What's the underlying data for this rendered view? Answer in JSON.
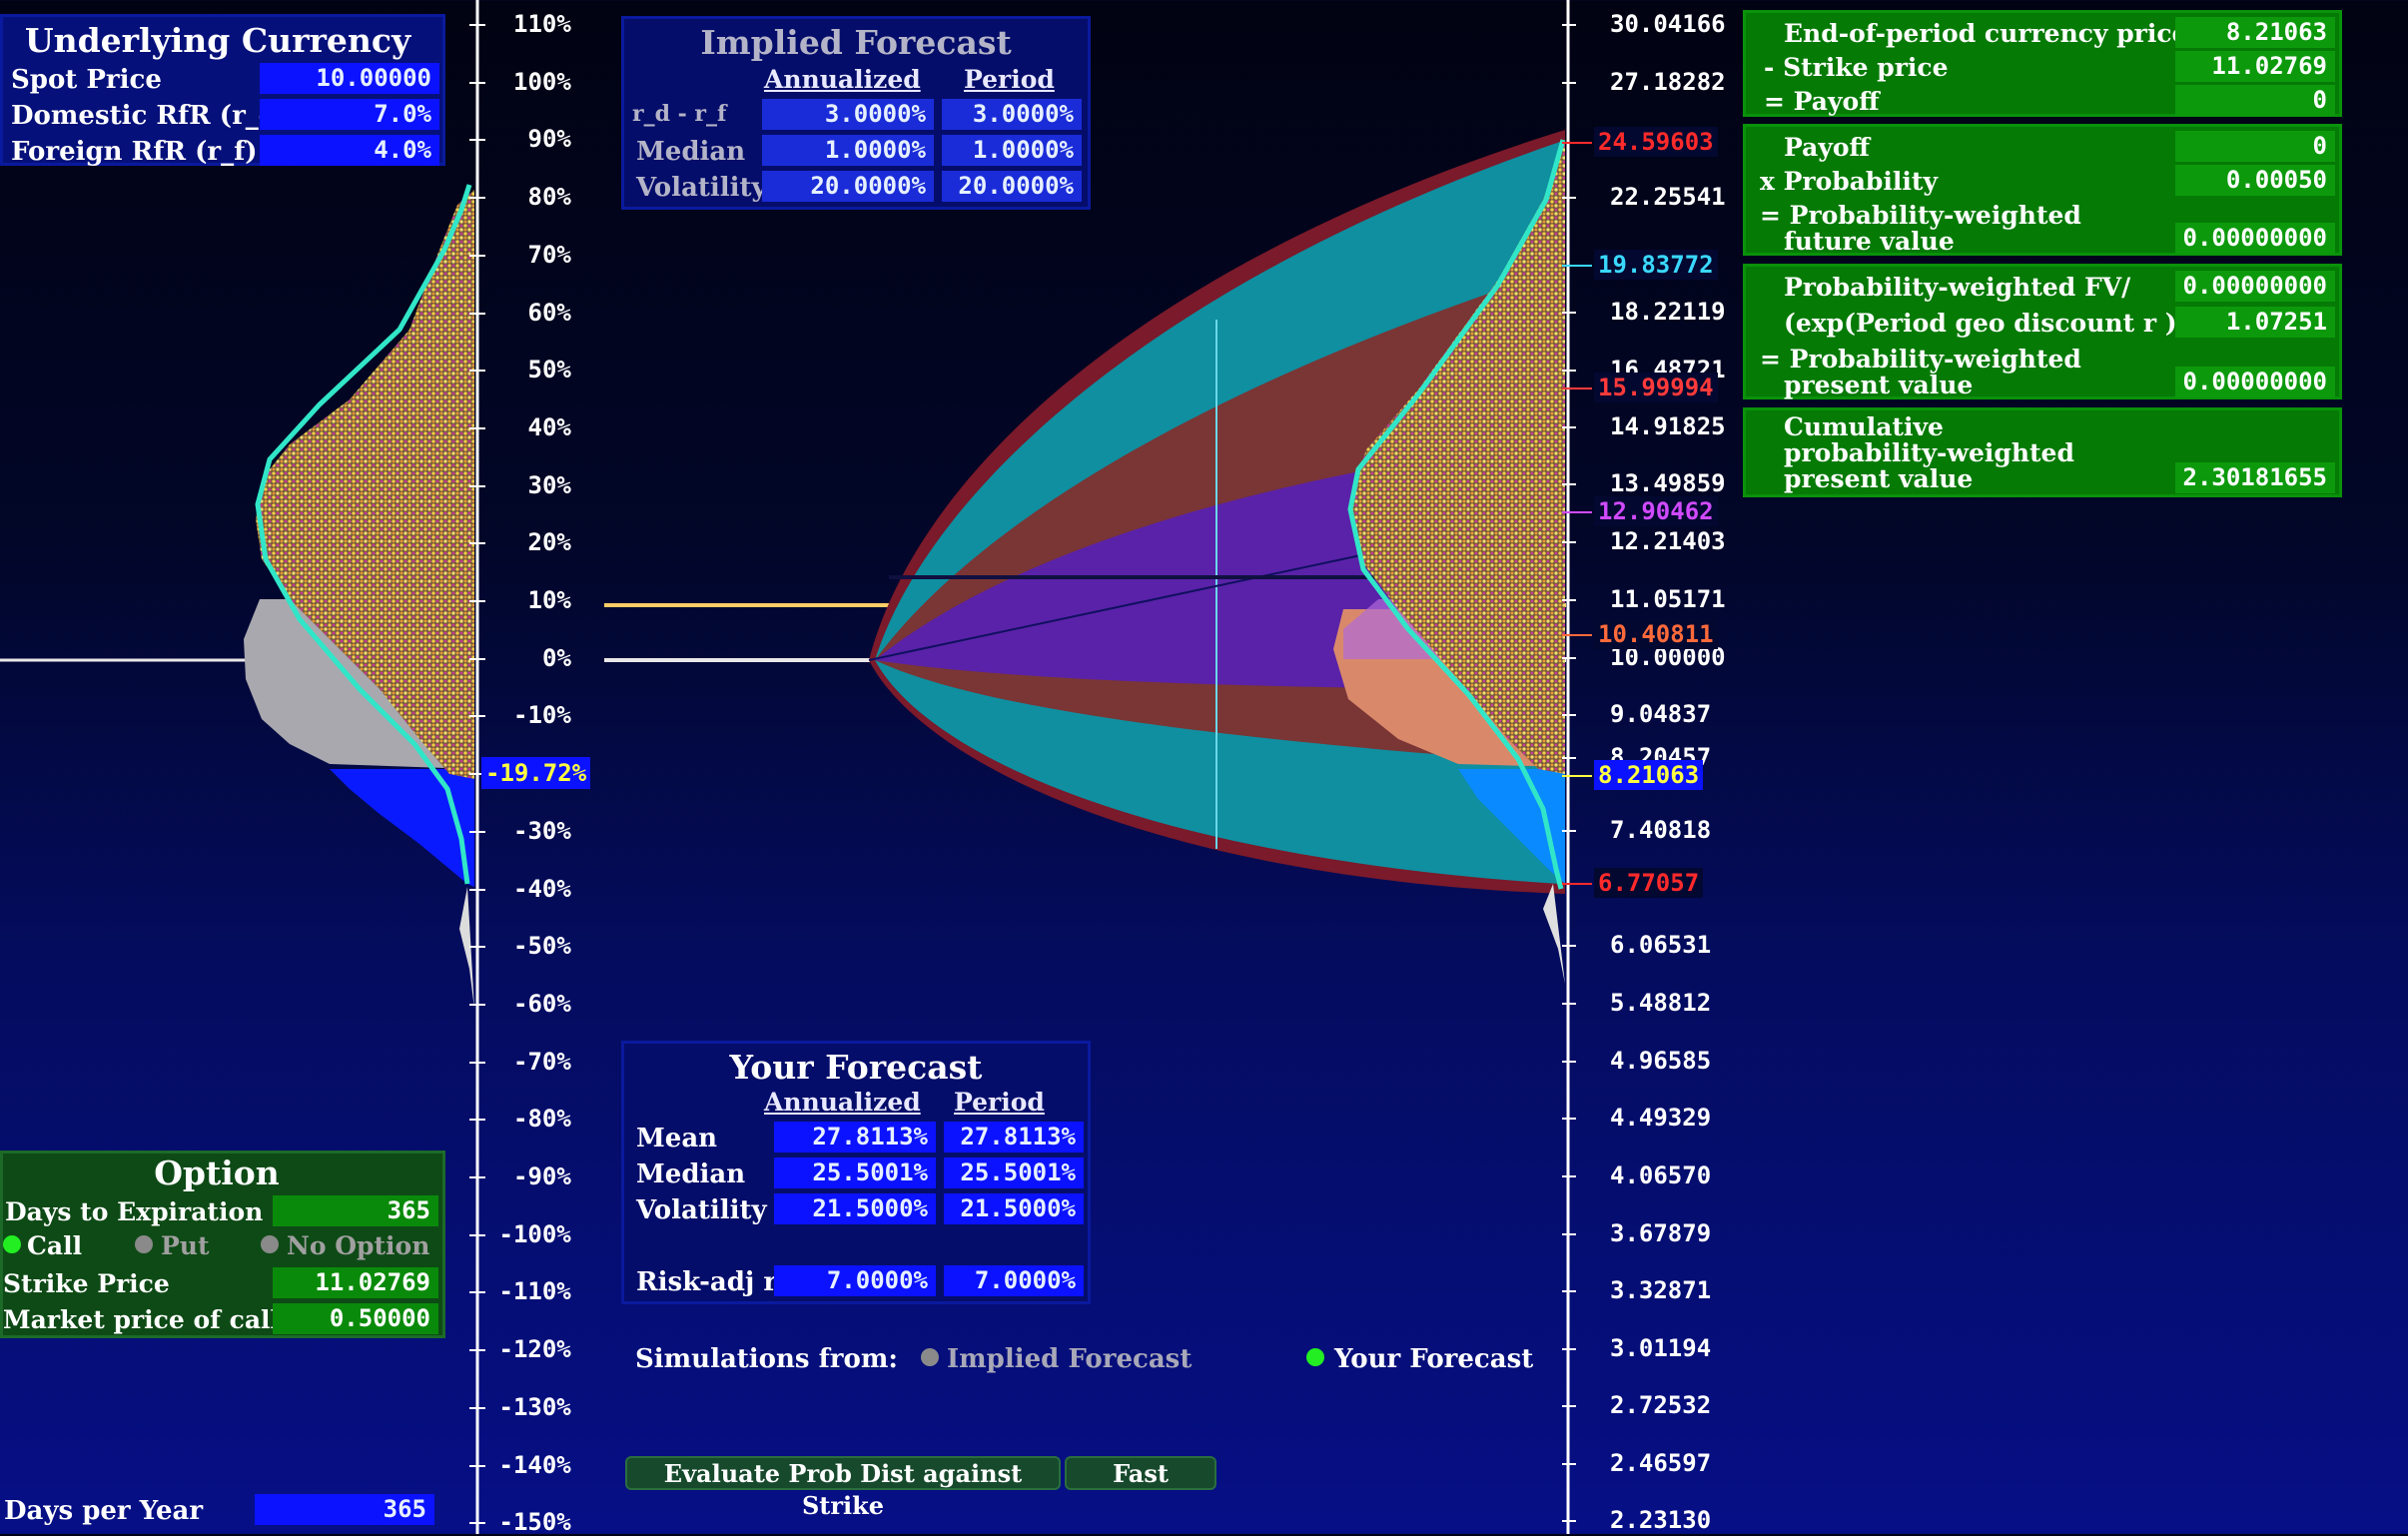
{
  "underlying": {
    "title": "Underlying Currency",
    "spot_label": "Spot Price",
    "spot_value": "10.00000",
    "domestic_label": "Domestic RfR (r_d)",
    "domestic_value": "7.0%",
    "foreign_label": "Foreign RfR (r_f)",
    "foreign_value": "4.0%"
  },
  "implied": {
    "title": "Implied Forecast",
    "col_annualized": "Annualized",
    "col_period": "Period",
    "rows": [
      {
        "label": "r_d - r_f",
        "annualized": "3.0000%",
        "period": "3.0000%"
      },
      {
        "label": "Median",
        "annualized": "1.0000%",
        "period": "1.0000%"
      },
      {
        "label": "Volatility",
        "annualized": "20.0000%",
        "period": "20.0000%"
      }
    ]
  },
  "your_forecast": {
    "title": "Your Forecast",
    "col_annualized": "Annualized",
    "col_period": "Period",
    "rows": [
      {
        "label": "Mean",
        "annualized": "27.8113%",
        "period": "27.8113%"
      },
      {
        "label": "Median",
        "annualized": "25.5001%",
        "period": "25.5001%"
      },
      {
        "label": "Volatility",
        "annualized": "21.5000%",
        "period": "21.5000%"
      }
    ],
    "risk_label": "Risk-adj r",
    "risk_annualized": "7.0000%",
    "risk_period": "7.0000%"
  },
  "simulations": {
    "label": "Simulations from:",
    "option_implied": "Implied Forecast",
    "option_yours": "Your Forecast",
    "selected": "Your Forecast"
  },
  "buttons": {
    "evaluate": "Evaluate Prob Dist against Strike",
    "fast": "Fast"
  },
  "option": {
    "title": "Option",
    "days_label": "Days to Expiration",
    "days_value": "365",
    "call_label": "Call",
    "put_label": "Put",
    "none_label": "No Option",
    "selected": "Call",
    "strike_label": "Strike Price",
    "strike_value": "11.02769",
    "market_label": "Market price of call",
    "market_value": "0.50000"
  },
  "days_per_year": {
    "label": "Days per Year",
    "value": "365"
  },
  "payoff": {
    "end_price_label": "End-of-period currency price",
    "end_price_value": "8.21063",
    "strike_label": "- Strike price",
    "strike_value": "11.02769",
    "payoff_label": "= Payoff",
    "payoff_value": "0",
    "payoff2_label": "Payoff",
    "payoff2_value": "0",
    "prob_label": "x Probability",
    "prob_value": "0.00050",
    "pwfv_label_1": "= Probability-weighted",
    "pwfv_label_2": "future value",
    "pwfv_value": "0.00000000",
    "pwfv2_label": "Probability-weighted FV/",
    "pwfv2_value": "0.00000000",
    "disc_label": "(exp(Period geo discount r ))",
    "disc_value": "1.07251",
    "pwpv_label_1": "= Probability-weighted",
    "pwpv_label_2": "present value",
    "pwpv_value": "0.00000000",
    "cum_label_1": "Cumulative",
    "cum_label_2": "probability-weighted",
    "cum_label_3": "present value",
    "cum_value": "2.30181655"
  },
  "left_axis": {
    "ticks": [
      "110%",
      "100%",
      "90%",
      "80%",
      "70%",
      "60%",
      "50%",
      "40%",
      "30%",
      "20%",
      "10%",
      "0%",
      "-10%",
      "-19.72%",
      "-30%",
      "-40%",
      "-50%",
      "-60%",
      "-70%",
      "-80%",
      "-90%",
      "-100%",
      "-110%",
      "-120%",
      "-130%",
      "-140%",
      "-150%"
    ],
    "highlight": "-19.72%"
  },
  "right_axis": {
    "ticks": [
      "30.04166",
      "27.18282",
      "22.25541",
      "18.22119",
      "16.48721",
      "14.91825",
      "13.49859",
      "12.21403",
      "11.05171",
      "10.00000",
      "9.04837",
      "8.20457",
      "7.40818",
      "6.06531",
      "5.48812",
      "4.96585",
      "4.49329",
      "4.06570",
      "3.67879",
      "3.32871",
      "3.01194",
      "2.72532",
      "2.46597",
      "2.23130"
    ],
    "marks": [
      {
        "text": "24.59603",
        "color": "#ff2a2a"
      },
      {
        "text": "19.83772",
        "color": "#3ad8ff"
      },
      {
        "text": "15.99994",
        "color": "#ff3a3a"
      },
      {
        "text": "12.90462",
        "color": "#d04aff"
      },
      {
        "text": "10.40811",
        "color": "#ff6a3a"
      },
      {
        "text": "8.21063",
        "color": "#ffff40"
      },
      {
        "text": "6.77057",
        "color": "#ff2a2a"
      }
    ]
  },
  "colors": {
    "teal": "#0f8fa0",
    "brown": "#7a3535",
    "purple": "#5a22a8",
    "strike_line": "#ffcc66"
  }
}
